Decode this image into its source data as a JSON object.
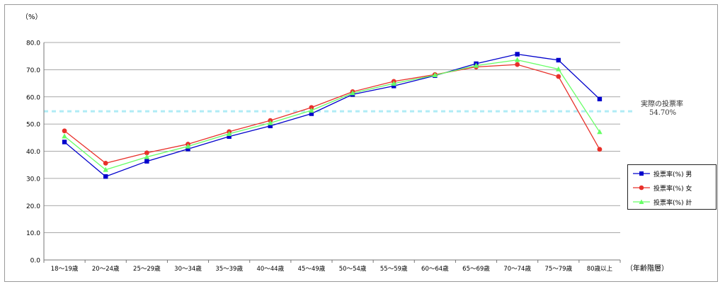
{
  "chart_data": {
    "type": "line",
    "ylabel": "（%）",
    "xlabel": "（年齢階層）",
    "ylim": [
      0,
      80
    ],
    "yticks": [
      "0.0",
      "10.0",
      "20.0",
      "30.0",
      "40.0",
      "50.0",
      "60.0",
      "70.0",
      "80.0"
    ],
    "grid": true,
    "legend_position": "right",
    "categories": [
      "18～19歳",
      "20～24歳",
      "25～29歳",
      "30～34歳",
      "35～39歳",
      "40～44歳",
      "45～49歳",
      "50～54歳",
      "55～59歳",
      "60～64歳",
      "65～69歳",
      "70～74歳",
      "75～79歳",
      "80歳以上"
    ],
    "series": [
      {
        "name": "投票率(%) 男",
        "color": "#0000cc",
        "marker": "square",
        "values": [
          43.4,
          30.7,
          36.3,
          40.8,
          45.4,
          49.3,
          53.8,
          60.9,
          64.0,
          67.8,
          72.2,
          75.7,
          73.5,
          59.2
        ]
      },
      {
        "name": "投票率(%) 女",
        "color": "#e8302a",
        "marker": "circle",
        "values": [
          47.5,
          35.6,
          39.4,
          42.6,
          47.2,
          51.3,
          56.1,
          61.9,
          65.7,
          68.2,
          71.0,
          71.9,
          67.5,
          40.7
        ]
      },
      {
        "name": "投票率(%) 計",
        "color": "#66ff66",
        "marker": "triangle",
        "values": [
          45.5,
          33.2,
          37.9,
          41.8,
          46.4,
          50.4,
          55.0,
          61.4,
          64.9,
          68.0,
          71.5,
          73.6,
          70.2,
          47.1
        ]
      }
    ],
    "reference_line": {
      "value": 54.7,
      "color": "#b0ecf5",
      "label_line1": "実際の投票率",
      "label_line2": "54.70%"
    }
  }
}
